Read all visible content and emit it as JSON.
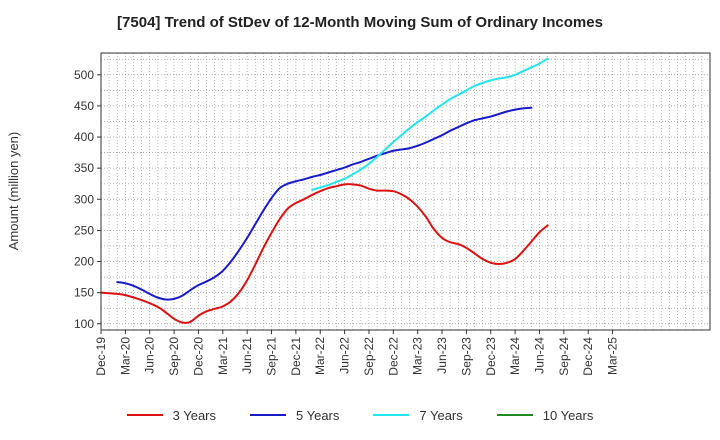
{
  "chart_data": {
    "type": "line",
    "title": "[7504]  Trend of StDev of 12-Month Moving Sum of Ordinary Incomes",
    "ylabel": "Amount (million yen)",
    "xlabel": "",
    "ylim": [
      90,
      535
    ],
    "yticks": [
      100,
      150,
      200,
      250,
      300,
      350,
      400,
      450,
      500
    ],
    "x_range_months": [
      0,
      75
    ],
    "xticks": [
      {
        "label": "Dec-19",
        "m": 0
      },
      {
        "label": "Mar-20",
        "m": 3
      },
      {
        "label": "Jun-20",
        "m": 6
      },
      {
        "label": "Sep-20",
        "m": 9
      },
      {
        "label": "Dec-20",
        "m": 12
      },
      {
        "label": "Mar-21",
        "m": 15
      },
      {
        "label": "Jun-21",
        "m": 18
      },
      {
        "label": "Sep-21",
        "m": 21
      },
      {
        "label": "Dec-21",
        "m": 24
      },
      {
        "label": "Mar-22",
        "m": 27
      },
      {
        "label": "Jun-22",
        "m": 30
      },
      {
        "label": "Sep-22",
        "m": 33
      },
      {
        "label": "Dec-22",
        "m": 36
      },
      {
        "label": "Mar-23",
        "m": 39
      },
      {
        "label": "Jun-23",
        "m": 42
      },
      {
        "label": "Sep-23",
        "m": 45
      },
      {
        "label": "Dec-23",
        "m": 48
      },
      {
        "label": "Mar-24",
        "m": 51
      },
      {
        "label": "Jun-24",
        "m": 54
      },
      {
        "label": "Sep-24",
        "m": 57
      },
      {
        "label": "Dec-24",
        "m": 60
      },
      {
        "label": "Mar-25",
        "m": 63
      }
    ],
    "grid": true,
    "series": [
      {
        "name": "3 Years",
        "color": "#dd1111",
        "points": [
          [
            0,
            150
          ],
          [
            2,
            148
          ],
          [
            3,
            146
          ],
          [
            5,
            138
          ],
          [
            7,
            127
          ],
          [
            8,
            118
          ],
          [
            9,
            108
          ],
          [
            10,
            102
          ],
          [
            11,
            103
          ],
          [
            12,
            113
          ],
          [
            13,
            120
          ],
          [
            14,
            124
          ],
          [
            15,
            128
          ],
          [
            16,
            136
          ],
          [
            17,
            150
          ],
          [
            18,
            170
          ],
          [
            19,
            195
          ],
          [
            20,
            222
          ],
          [
            21,
            246
          ],
          [
            22,
            268
          ],
          [
            23,
            285
          ],
          [
            24,
            294
          ],
          [
            25,
            300
          ],
          [
            26,
            307
          ],
          [
            27,
            313
          ],
          [
            28,
            318
          ],
          [
            29,
            321
          ],
          [
            30,
            324
          ],
          [
            31,
            324
          ],
          [
            32,
            322
          ],
          [
            33,
            317
          ],
          [
            34,
            314
          ],
          [
            35,
            314
          ],
          [
            36,
            313
          ],
          [
            37,
            308
          ],
          [
            38,
            300
          ],
          [
            39,
            288
          ],
          [
            40,
            272
          ],
          [
            41,
            252
          ],
          [
            42,
            238
          ],
          [
            43,
            231
          ],
          [
            44,
            228
          ],
          [
            45,
            222
          ],
          [
            46,
            213
          ],
          [
            47,
            204
          ],
          [
            48,
            198
          ],
          [
            49,
            196
          ],
          [
            50,
            198
          ],
          [
            51,
            204
          ],
          [
            52,
            217
          ],
          [
            53,
            232
          ],
          [
            54,
            247
          ],
          [
            55,
            258
          ]
        ]
      },
      {
        "name": "5 Years",
        "color": "#1a1acc",
        "points": [
          [
            2,
            167
          ],
          [
            3,
            165
          ],
          [
            4,
            161
          ],
          [
            5,
            155
          ],
          [
            6,
            148
          ],
          [
            7,
            142
          ],
          [
            8,
            139
          ],
          [
            9,
            140
          ],
          [
            10,
            145
          ],
          [
            11,
            154
          ],
          [
            12,
            162
          ],
          [
            13,
            168
          ],
          [
            14,
            175
          ],
          [
            15,
            185
          ],
          [
            16,
            200
          ],
          [
            17,
            218
          ],
          [
            18,
            238
          ],
          [
            19,
            260
          ],
          [
            20,
            282
          ],
          [
            21,
            302
          ],
          [
            22,
            318
          ],
          [
            23,
            325
          ],
          [
            24,
            329
          ],
          [
            25,
            332
          ],
          [
            26,
            336
          ],
          [
            27,
            339
          ],
          [
            28,
            343
          ],
          [
            29,
            347
          ],
          [
            30,
            351
          ],
          [
            31,
            356
          ],
          [
            32,
            360
          ],
          [
            33,
            365
          ],
          [
            34,
            370
          ],
          [
            35,
            374
          ],
          [
            36,
            378
          ],
          [
            37,
            380
          ],
          [
            38,
            382
          ],
          [
            39,
            386
          ],
          [
            40,
            391
          ],
          [
            41,
            397
          ],
          [
            42,
            403
          ],
          [
            43,
            410
          ],
          [
            44,
            416
          ],
          [
            45,
            422
          ],
          [
            46,
            427
          ],
          [
            47,
            430
          ],
          [
            48,
            433
          ],
          [
            49,
            437
          ],
          [
            50,
            441
          ],
          [
            51,
            444
          ],
          [
            52,
            446
          ],
          [
            53,
            447
          ]
        ]
      },
      {
        "name": "7 Years",
        "color": "#22e5ee",
        "points": [
          [
            26,
            315
          ],
          [
            27,
            319
          ],
          [
            28,
            323
          ],
          [
            29,
            328
          ],
          [
            30,
            333
          ],
          [
            31,
            340
          ],
          [
            32,
            348
          ],
          [
            33,
            357
          ],
          [
            34,
            368
          ],
          [
            35,
            380
          ],
          [
            36,
            392
          ],
          [
            37,
            403
          ],
          [
            38,
            414
          ],
          [
            39,
            424
          ],
          [
            40,
            433
          ],
          [
            41,
            443
          ],
          [
            42,
            452
          ],
          [
            43,
            461
          ],
          [
            44,
            468
          ],
          [
            45,
            475
          ],
          [
            46,
            482
          ],
          [
            47,
            487
          ],
          [
            48,
            491
          ],
          [
            49,
            494
          ],
          [
            50,
            496
          ],
          [
            51,
            500
          ],
          [
            52,
            506
          ],
          [
            53,
            512
          ],
          [
            54,
            518
          ],
          [
            55,
            526
          ]
        ]
      },
      {
        "name": "10 Years",
        "color": "#1e8a1e",
        "points": []
      }
    ]
  }
}
